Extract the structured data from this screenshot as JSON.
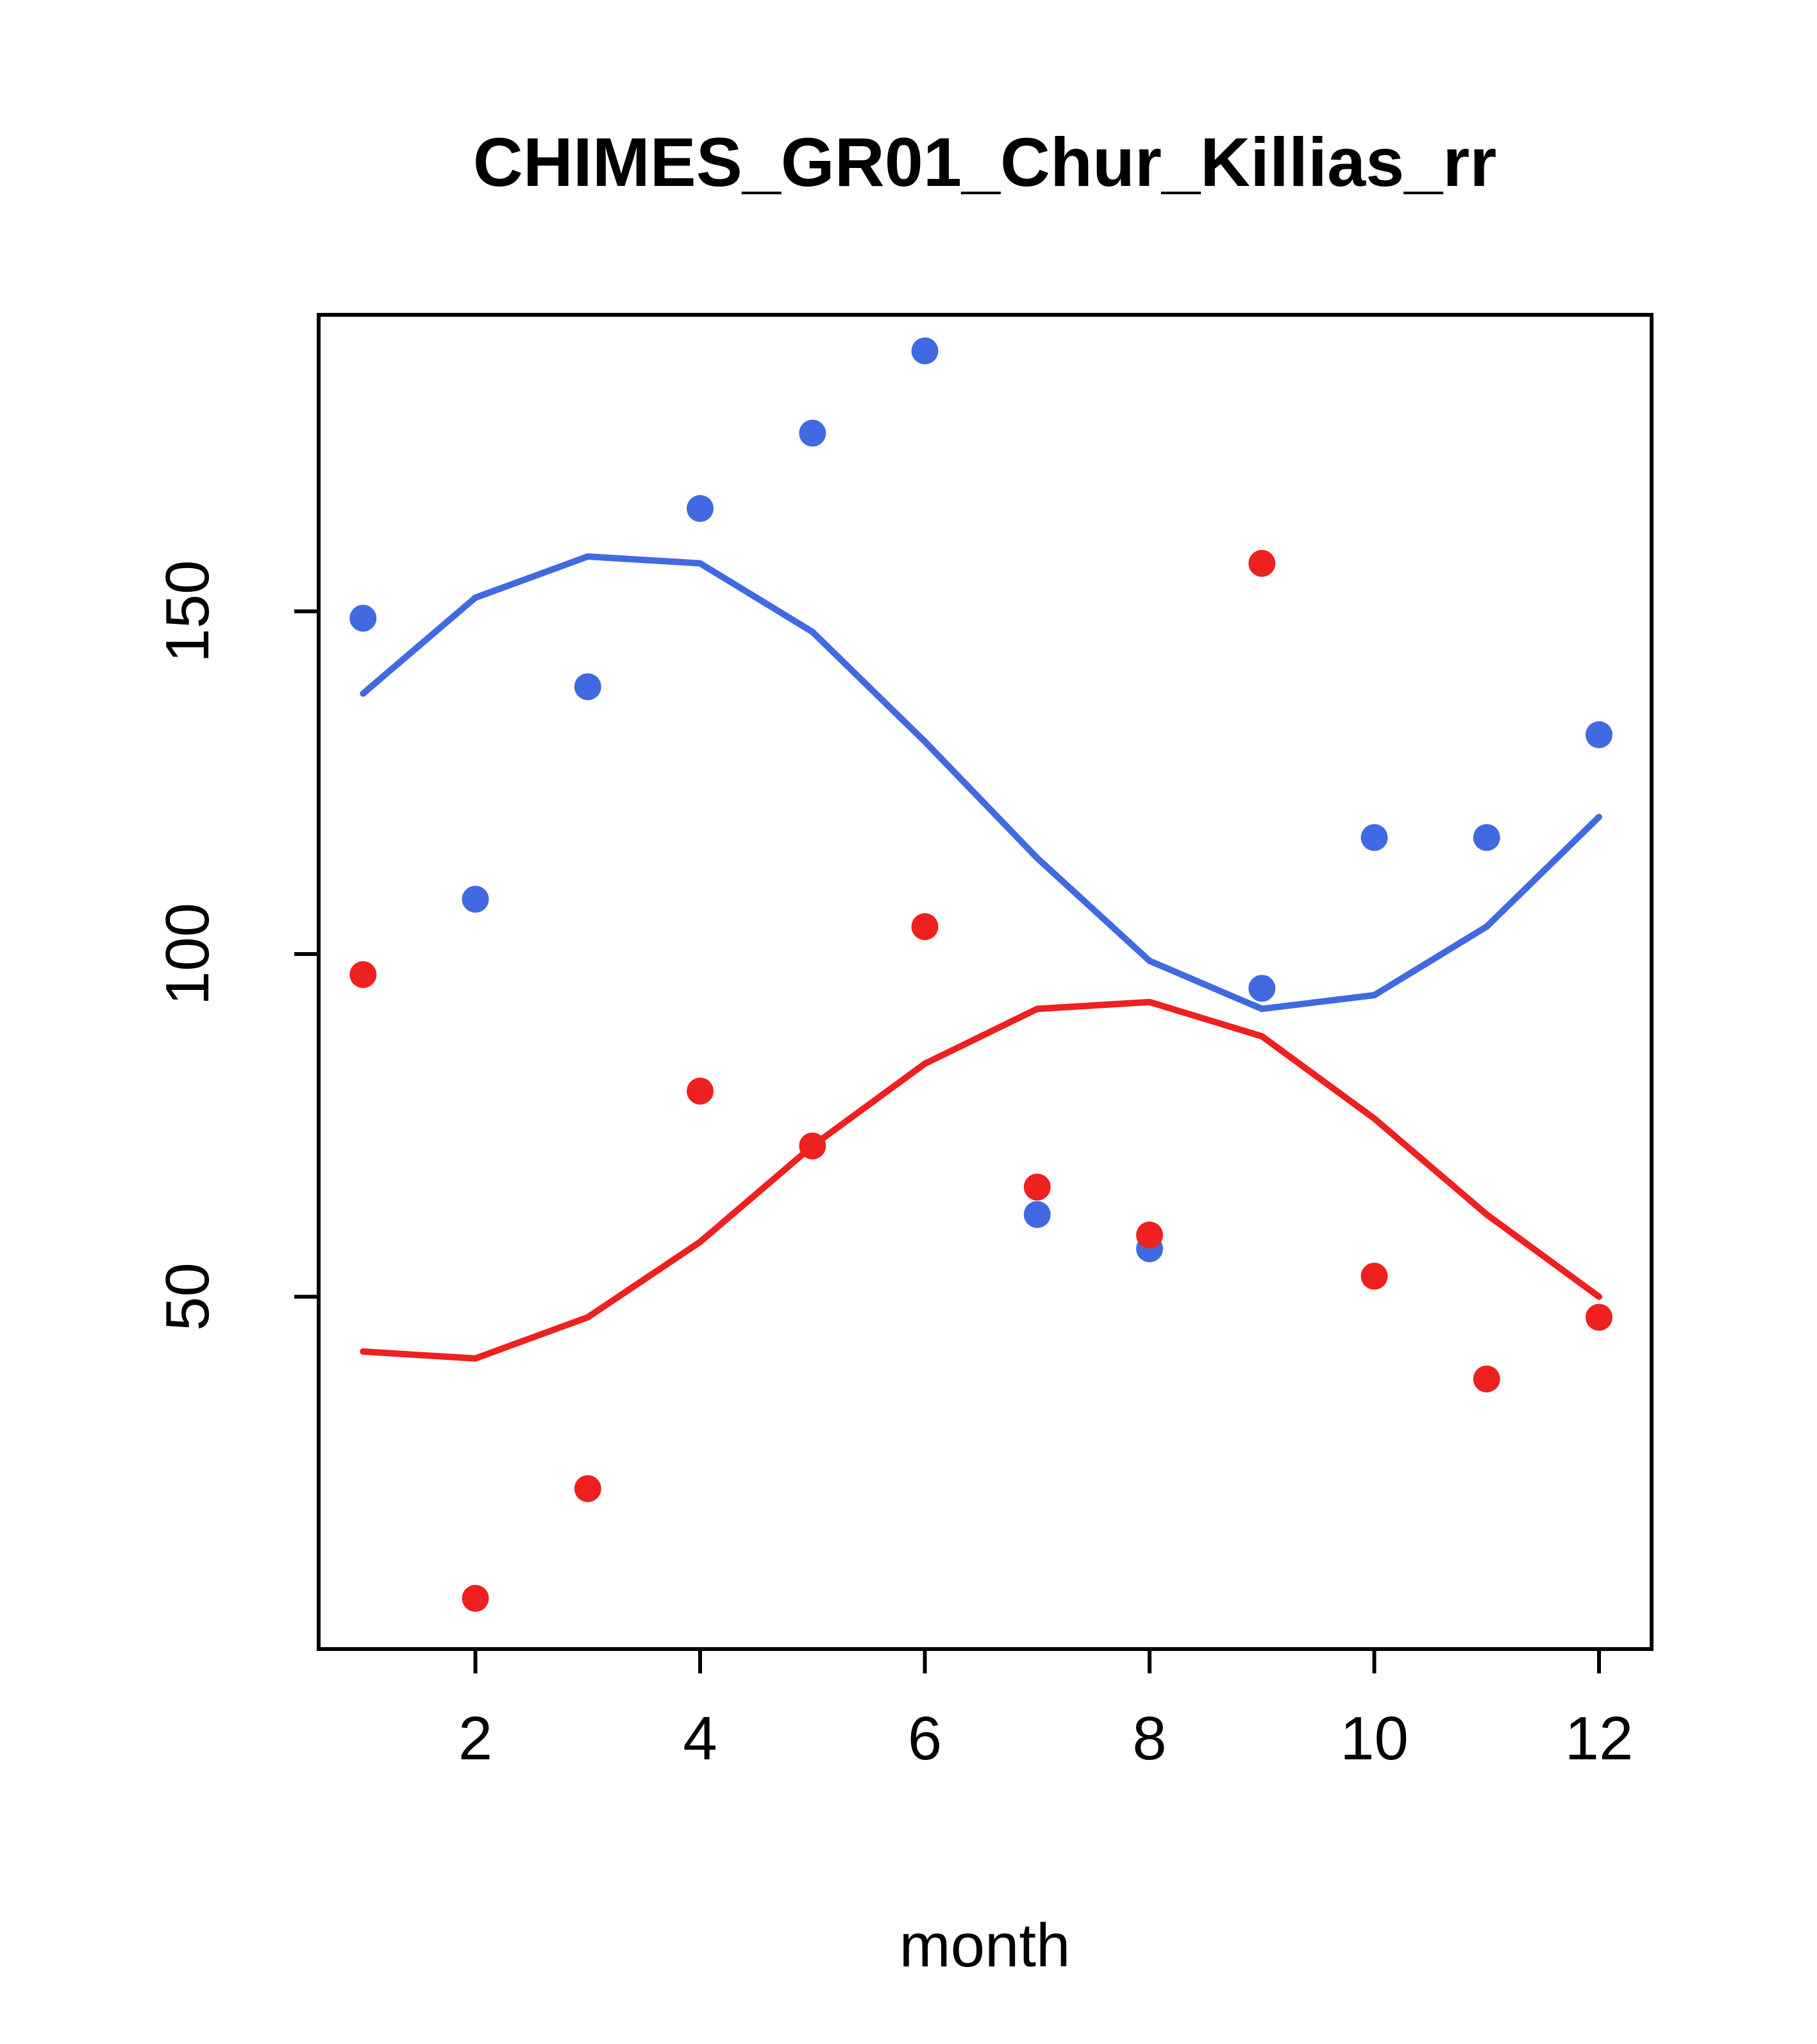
{
  "figure": {
    "background_color": "#ffffff",
    "frame_color": "#000000"
  },
  "chart_data": {
    "type": "scatter",
    "title": "CHIMES_GR01_Chur_Killias_rr",
    "xlabel": "month",
    "ylabel": "",
    "x_ticks": [
      2,
      4,
      6,
      8,
      10,
      12
    ],
    "y_ticks": [
      50,
      100,
      150
    ],
    "xlim": [
      0.56,
      12.44
    ],
    "ylim": [
      -2,
      193
    ],
    "grid": false,
    "legend": "none",
    "months": [
      1,
      2,
      3,
      4,
      5,
      6,
      7,
      8,
      9,
      10,
      11,
      12
    ],
    "colors": {
      "blue": "#4169E1",
      "red": "#EE2020"
    },
    "series": [
      {
        "name": "blue-points",
        "kind": "points",
        "color": "#4169E1",
        "values": [
          149,
          108,
          139,
          165,
          176,
          188,
          62,
          57,
          95,
          117,
          117,
          132
        ]
      },
      {
        "name": "red-points",
        "kind": "points",
        "color": "#EE2020",
        "values": [
          97,
          6,
          22,
          80,
          72,
          104,
          66,
          59,
          157,
          53,
          38,
          47
        ]
      },
      {
        "name": "blue-smooth-line",
        "kind": "line",
        "color": "#4169E1",
        "values": [
          138,
          152,
          158,
          157,
          147,
          131,
          114,
          99,
          92,
          94,
          104,
          120
        ]
      },
      {
        "name": "red-smooth-line",
        "kind": "line",
        "color": "#EE2020",
        "values": [
          42,
          41,
          47,
          58,
          72,
          84,
          92,
          93,
          88,
          76,
          62,
          50
        ]
      }
    ]
  }
}
